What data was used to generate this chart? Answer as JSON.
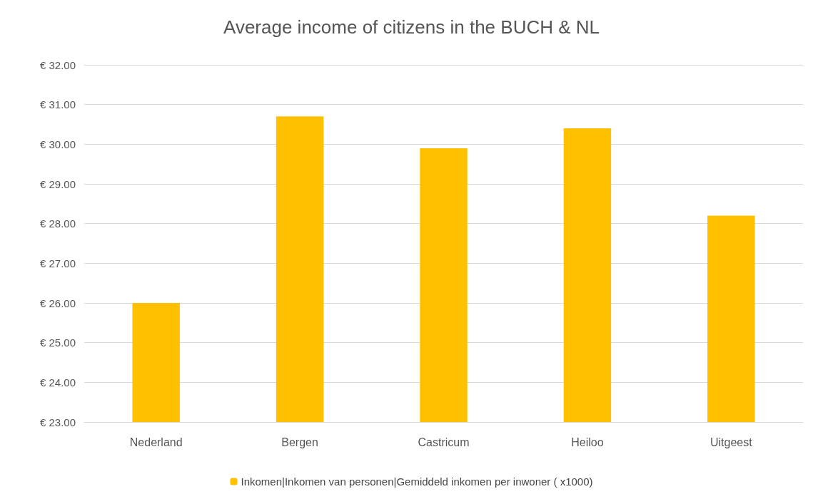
{
  "chart_data": {
    "type": "bar",
    "title": "Average income of citizens in the BUCH & NL",
    "categories": [
      "Nederland",
      "Bergen",
      "Castricum",
      "Heiloo",
      "Uitgeest"
    ],
    "series": [
      {
        "name": "Inkomen|Inkomen van personen|Gemiddeld inkomen per inwoner ( x1000)",
        "color": "#ffc000",
        "values": [
          26.0,
          30.7,
          29.9,
          30.4,
          28.2
        ]
      }
    ],
    "ylim": [
      23,
      32
    ],
    "yticks": [
      {
        "value": 23,
        "label": "€ 23.00"
      },
      {
        "value": 24,
        "label": "€ 24.00"
      },
      {
        "value": 25,
        "label": "€ 25.00"
      },
      {
        "value": 26,
        "label": "€ 26.00"
      },
      {
        "value": 27,
        "label": "€ 27.00"
      },
      {
        "value": 28,
        "label": "€ 28.00"
      },
      {
        "value": 29,
        "label": "€ 29.00"
      },
      {
        "value": 30,
        "label": "€ 30.00"
      },
      {
        "value": 31,
        "label": "€ 31.00"
      },
      {
        "value": 32,
        "label": "€ 32.00"
      }
    ],
    "grid": "y",
    "legend": "bottom"
  }
}
